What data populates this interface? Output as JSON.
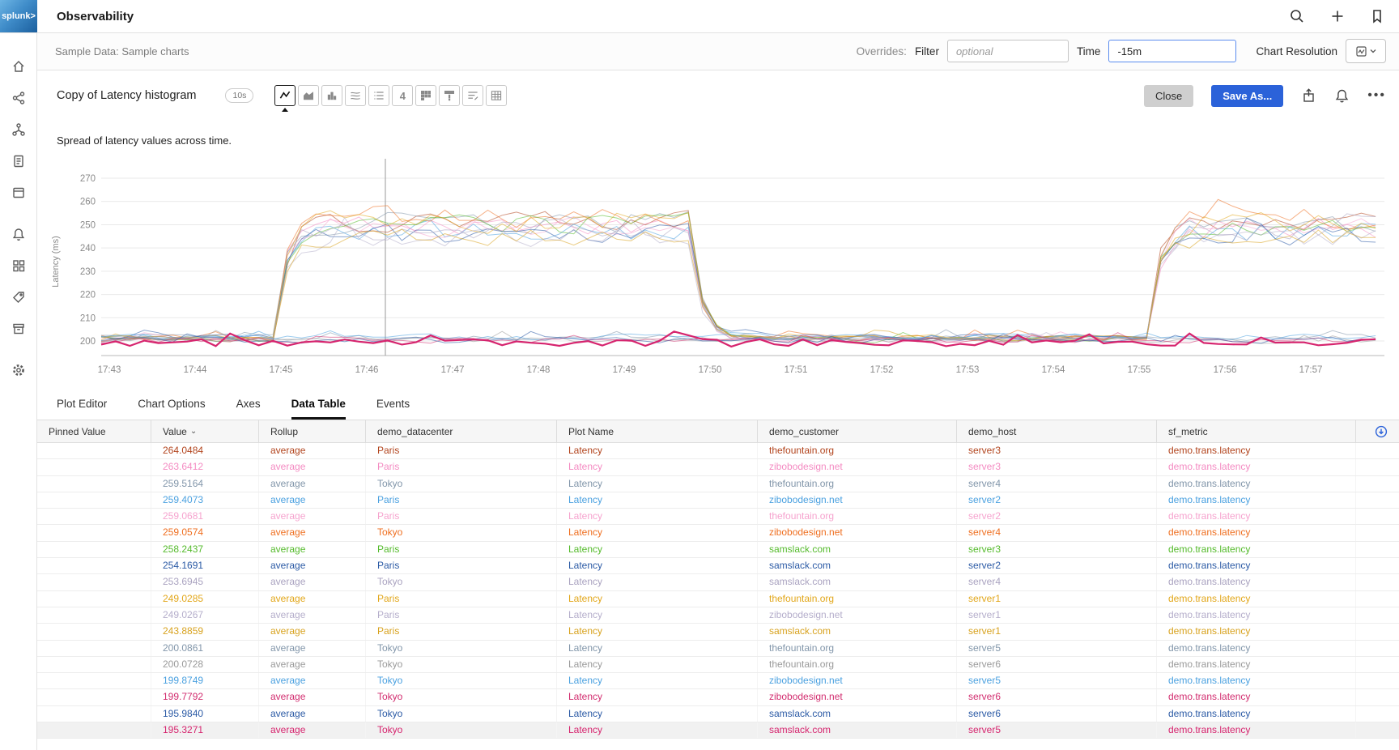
{
  "app": {
    "logo": "splunk>",
    "title": "Observability"
  },
  "topbar": {
    "icons": [
      "search",
      "add",
      "bookmark"
    ]
  },
  "subheader": {
    "breadcrumb": "Sample Data: Sample charts",
    "overrides_label": "Overrides:",
    "filter_label": "Filter",
    "filter_placeholder": "optional",
    "time_label": "Time",
    "time_value": "-15m",
    "resolution_label": "Chart Resolution"
  },
  "chart_header": {
    "title": "Copy of Latency histogram",
    "badge": "10s",
    "description": "Spread of latency values across time.",
    "close_label": "Close",
    "save_as_label": "Save As...",
    "accent_color": "#2b62d9"
  },
  "chart_types": [
    {
      "name": "line",
      "selected": true
    },
    {
      "name": "area",
      "selected": false
    },
    {
      "name": "column",
      "selected": false
    },
    {
      "name": "histogram",
      "selected": false
    },
    {
      "name": "list",
      "selected": false
    },
    {
      "name": "single-value",
      "selected": false
    },
    {
      "name": "heatmap",
      "selected": false
    },
    {
      "name": "event-feed",
      "selected": false
    },
    {
      "name": "text",
      "selected": false
    },
    {
      "name": "table",
      "selected": false
    }
  ],
  "tabs": [
    {
      "label": "Plot Editor",
      "active": false
    },
    {
      "label": "Chart Options",
      "active": false
    },
    {
      "label": "Axes",
      "active": false
    },
    {
      "label": "Data Table",
      "active": true
    },
    {
      "label": "Events",
      "active": false
    }
  ],
  "chart_data": {
    "type": "line",
    "ylabel": "Latency (ms)",
    "ylim": [
      195,
      272
    ],
    "yticks": [
      200,
      210,
      220,
      230,
      240,
      250,
      260,
      270
    ],
    "xticks": [
      "17:43",
      "17:44",
      "17:45",
      "17:46",
      "17:47",
      "17:48",
      "17:49",
      "17:50",
      "17:51",
      "17:52",
      "17:53",
      "17:54",
      "17:55",
      "17:56",
      "17:57"
    ],
    "grid": "horizontal",
    "legend": "none",
    "cursor_time": "17:46",
    "elevated_windows": [
      [
        2.15,
        6.9
      ],
      [
        12.2,
        14.9
      ]
    ],
    "series": [
      {
        "name": "thefountain.org/server3",
        "color": "#b2441d",
        "elevated": true,
        "base_level": 201.0,
        "elevated_level": 252
      },
      {
        "name": "zibobodesign.net/server3",
        "color": "#f48bc2",
        "elevated": true,
        "base_level": 200.5,
        "elevated_level": 249
      },
      {
        "name": "thefountain.org/server4",
        "color": "#8296aa",
        "elevated": true,
        "base_level": 201.5,
        "elevated_level": 251
      },
      {
        "name": "zibobodesign.net/server2",
        "color": "#4ba1e0",
        "elevated": true,
        "base_level": 202.0,
        "elevated_level": 247
      },
      {
        "name": "thefountain.org/server2",
        "color": "#f6a3ce",
        "elevated": true,
        "base_level": 200.8,
        "elevated_level": 250
      },
      {
        "name": "zibobodesign.net/server4",
        "color": "#ef6f20",
        "elevated": true,
        "base_level": 201.2,
        "elevated_level": 253
      },
      {
        "name": "samslack.com/server3",
        "color": "#55bb2c",
        "elevated": true,
        "base_level": 200.6,
        "elevated_level": 250
      },
      {
        "name": "samslack.com/server2",
        "color": "#2b5aa5",
        "elevated": true,
        "base_level": 201.8,
        "elevated_level": 246
      },
      {
        "name": "samslack.com/server4",
        "color": "#aaa3c0",
        "elevated": true,
        "base_level": 200.9,
        "elevated_level": 248
      },
      {
        "name": "thefountain.org/server1",
        "color": "#e2a71b",
        "elevated": true,
        "base_level": 201.4,
        "elevated_level": 251
      },
      {
        "name": "zibobodesign.net/server1",
        "color": "#b5aecb",
        "elevated": true,
        "base_level": 200.7,
        "elevated_level": 245
      },
      {
        "name": "samslack.com/server1",
        "color": "#d8a21e",
        "elevated": true,
        "base_level": 201.1,
        "elevated_level": 244
      },
      {
        "name": "thefountain.org/server5",
        "color": "#8296aa",
        "elevated": false,
        "base_level": 201.3
      },
      {
        "name": "thefountain.org/server6",
        "color": "#9a9a9a",
        "elevated": false,
        "base_level": 200.4
      },
      {
        "name": "zibobodesign.net/server5",
        "color": "#4ba1e0",
        "elevated": false,
        "base_level": 201.6
      },
      {
        "name": "zibobodesign.net/server6",
        "color": "#d22d6f",
        "elevated": false,
        "base_level": 200.3
      },
      {
        "name": "samslack.com/server6",
        "color": "#2b5aa5",
        "elevated": false,
        "base_level": 200.2
      },
      {
        "name": "samslack.com/server5",
        "color": "#d6246e",
        "elevated": false,
        "base_level": 199.2,
        "bold": true
      }
    ]
  },
  "table": {
    "columns": [
      {
        "key": "pinned_value",
        "label": "Pinned Value"
      },
      {
        "key": "value",
        "label": "Value",
        "sorted": "desc"
      },
      {
        "key": "rollup",
        "label": "Rollup"
      },
      {
        "key": "datacenter",
        "label": "demo_datacenter"
      },
      {
        "key": "plot",
        "label": "Plot Name"
      },
      {
        "key": "customer",
        "label": "demo_customer"
      },
      {
        "key": "host",
        "label": "demo_host"
      },
      {
        "key": "metric",
        "label": "sf_metric"
      },
      {
        "key": "export",
        "label": ""
      }
    ],
    "rows": [
      {
        "value": "264.0484",
        "rollup": "average",
        "datacenter": "Paris",
        "plot": "Latency",
        "customer": "thefountain.org",
        "host": "server3",
        "metric": "demo.trans.latency",
        "color": "#b2441d",
        "highlighted": false
      },
      {
        "value": "263.6412",
        "rollup": "average",
        "datacenter": "Paris",
        "plot": "Latency",
        "customer": "zibobodesign.net",
        "host": "server3",
        "metric": "demo.trans.latency",
        "color": "#f48bc2",
        "highlighted": false
      },
      {
        "value": "259.5164",
        "rollup": "average",
        "datacenter": "Tokyo",
        "plot": "Latency",
        "customer": "thefountain.org",
        "host": "server4",
        "metric": "demo.trans.latency",
        "color": "#8296aa",
        "highlighted": false
      },
      {
        "value": "259.4073",
        "rollup": "average",
        "datacenter": "Paris",
        "plot": "Latency",
        "customer": "zibobodesign.net",
        "host": "server2",
        "metric": "demo.trans.latency",
        "color": "#4ba1e0",
        "highlighted": false
      },
      {
        "value": "259.0681",
        "rollup": "average",
        "datacenter": "Paris",
        "plot": "Latency",
        "customer": "thefountain.org",
        "host": "server2",
        "metric": "demo.trans.latency",
        "color": "#f6a3ce",
        "highlighted": false
      },
      {
        "value": "259.0574",
        "rollup": "average",
        "datacenter": "Tokyo",
        "plot": "Latency",
        "customer": "zibobodesign.net",
        "host": "server4",
        "metric": "demo.trans.latency",
        "color": "#ef6f20",
        "highlighted": false
      },
      {
        "value": "258.2437",
        "rollup": "average",
        "datacenter": "Paris",
        "plot": "Latency",
        "customer": "samslack.com",
        "host": "server3",
        "metric": "demo.trans.latency",
        "color": "#55bb2c",
        "highlighted": false
      },
      {
        "value": "254.1691",
        "rollup": "average",
        "datacenter": "Paris",
        "plot": "Latency",
        "customer": "samslack.com",
        "host": "server2",
        "metric": "demo.trans.latency",
        "color": "#2b5aa5",
        "highlighted": false
      },
      {
        "value": "253.6945",
        "rollup": "average",
        "datacenter": "Tokyo",
        "plot": "Latency",
        "customer": "samslack.com",
        "host": "server4",
        "metric": "demo.trans.latency",
        "color": "#aaa3c0",
        "highlighted": false
      },
      {
        "value": "249.0285",
        "rollup": "average",
        "datacenter": "Paris",
        "plot": "Latency",
        "customer": "thefountain.org",
        "host": "server1",
        "metric": "demo.trans.latency",
        "color": "#e2a71b",
        "highlighted": false
      },
      {
        "value": "249.0267",
        "rollup": "average",
        "datacenter": "Paris",
        "plot": "Latency",
        "customer": "zibobodesign.net",
        "host": "server1",
        "metric": "demo.trans.latency",
        "color": "#b5aecb",
        "highlighted": false
      },
      {
        "value": "243.8859",
        "rollup": "average",
        "datacenter": "Paris",
        "plot": "Latency",
        "customer": "samslack.com",
        "host": "server1",
        "metric": "demo.trans.latency",
        "color": "#d8a21e",
        "highlighted": false
      },
      {
        "value": "200.0861",
        "rollup": "average",
        "datacenter": "Tokyo",
        "plot": "Latency",
        "customer": "thefountain.org",
        "host": "server5",
        "metric": "demo.trans.latency",
        "color": "#8296aa",
        "highlighted": false
      },
      {
        "value": "200.0728",
        "rollup": "average",
        "datacenter": "Tokyo",
        "plot": "Latency",
        "customer": "thefountain.org",
        "host": "server6",
        "metric": "demo.trans.latency",
        "color": "#9a9a9a",
        "highlighted": false
      },
      {
        "value": "199.8749",
        "rollup": "average",
        "datacenter": "Tokyo",
        "plot": "Latency",
        "customer": "zibobodesign.net",
        "host": "server5",
        "metric": "demo.trans.latency",
        "color": "#4ba1e0",
        "highlighted": false
      },
      {
        "value": "199.7792",
        "rollup": "average",
        "datacenter": "Tokyo",
        "plot": "Latency",
        "customer": "zibobodesign.net",
        "host": "server6",
        "metric": "demo.trans.latency",
        "color": "#d22d6f",
        "highlighted": false
      },
      {
        "value": "195.9840",
        "rollup": "average",
        "datacenter": "Tokyo",
        "plot": "Latency",
        "customer": "samslack.com",
        "host": "server6",
        "metric": "demo.trans.latency",
        "color": "#2b5aa5",
        "highlighted": false
      },
      {
        "value": "195.3271",
        "rollup": "average",
        "datacenter": "Tokyo",
        "plot": "Latency",
        "customer": "samslack.com",
        "host": "server5",
        "metric": "demo.trans.latency",
        "color": "#d6246e",
        "highlighted": true
      }
    ]
  }
}
